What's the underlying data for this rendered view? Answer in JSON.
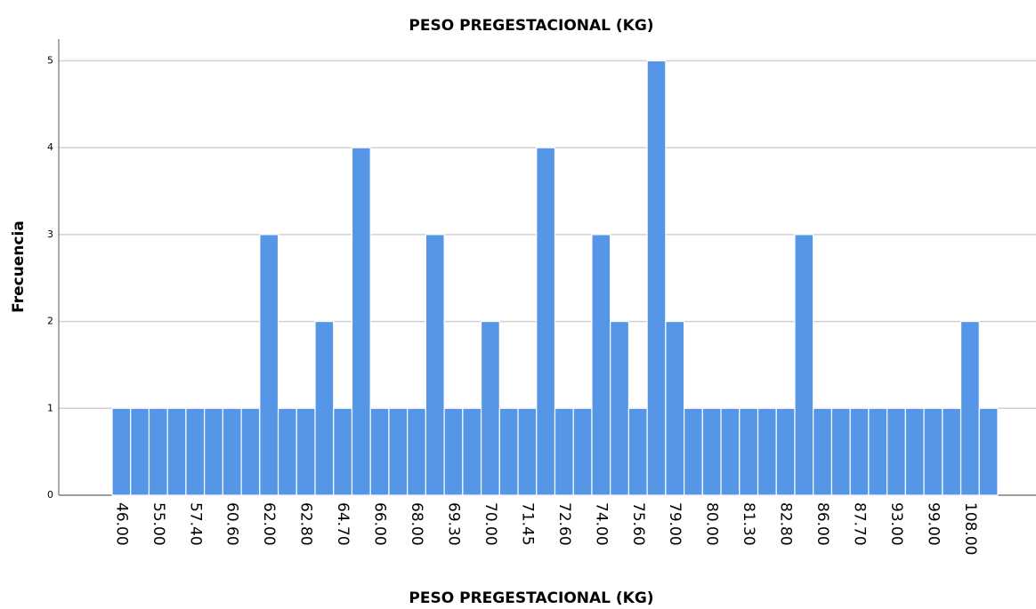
{
  "chart_data": {
    "type": "bar",
    "title": "PESO PREGESTACIONAL (KG)",
    "x_label": "PESO PREGESTACIONAL (KG)",
    "y_label": "Frecuencia",
    "categories": [
      "46.00",
      null,
      "55.00",
      null,
      "57.40",
      null,
      "60.60",
      null,
      "62.00",
      null,
      "62.80",
      null,
      "64.70",
      null,
      "66.00",
      null,
      "68.00",
      null,
      "69.30",
      null,
      "70.00",
      null,
      "71.45",
      null,
      "72.60",
      null,
      "74.00",
      null,
      "75.60",
      null,
      "79.00",
      null,
      "80.00",
      null,
      "81.30",
      null,
      "82.80",
      null,
      "86.00",
      null,
      "87.70",
      null,
      "93.00",
      null,
      "99.00",
      null,
      "108.00",
      null
    ],
    "values": [
      1,
      1,
      1,
      1,
      1,
      1,
      1,
      1,
      3,
      1,
      1,
      2,
      1,
      4,
      1,
      1,
      1,
      3,
      1,
      1,
      2,
      1,
      1,
      4,
      1,
      1,
      3,
      2,
      1,
      5,
      2,
      1,
      1,
      1,
      1,
      1,
      1,
      3,
      1,
      1,
      1,
      1,
      1,
      1,
      1,
      1,
      2,
      1
    ],
    "color": "#5596e6",
    "ylim": [
      0,
      5.25
    ],
    "yticks": [
      0,
      1,
      2,
      3,
      4,
      5
    ],
    "grid": true
  }
}
